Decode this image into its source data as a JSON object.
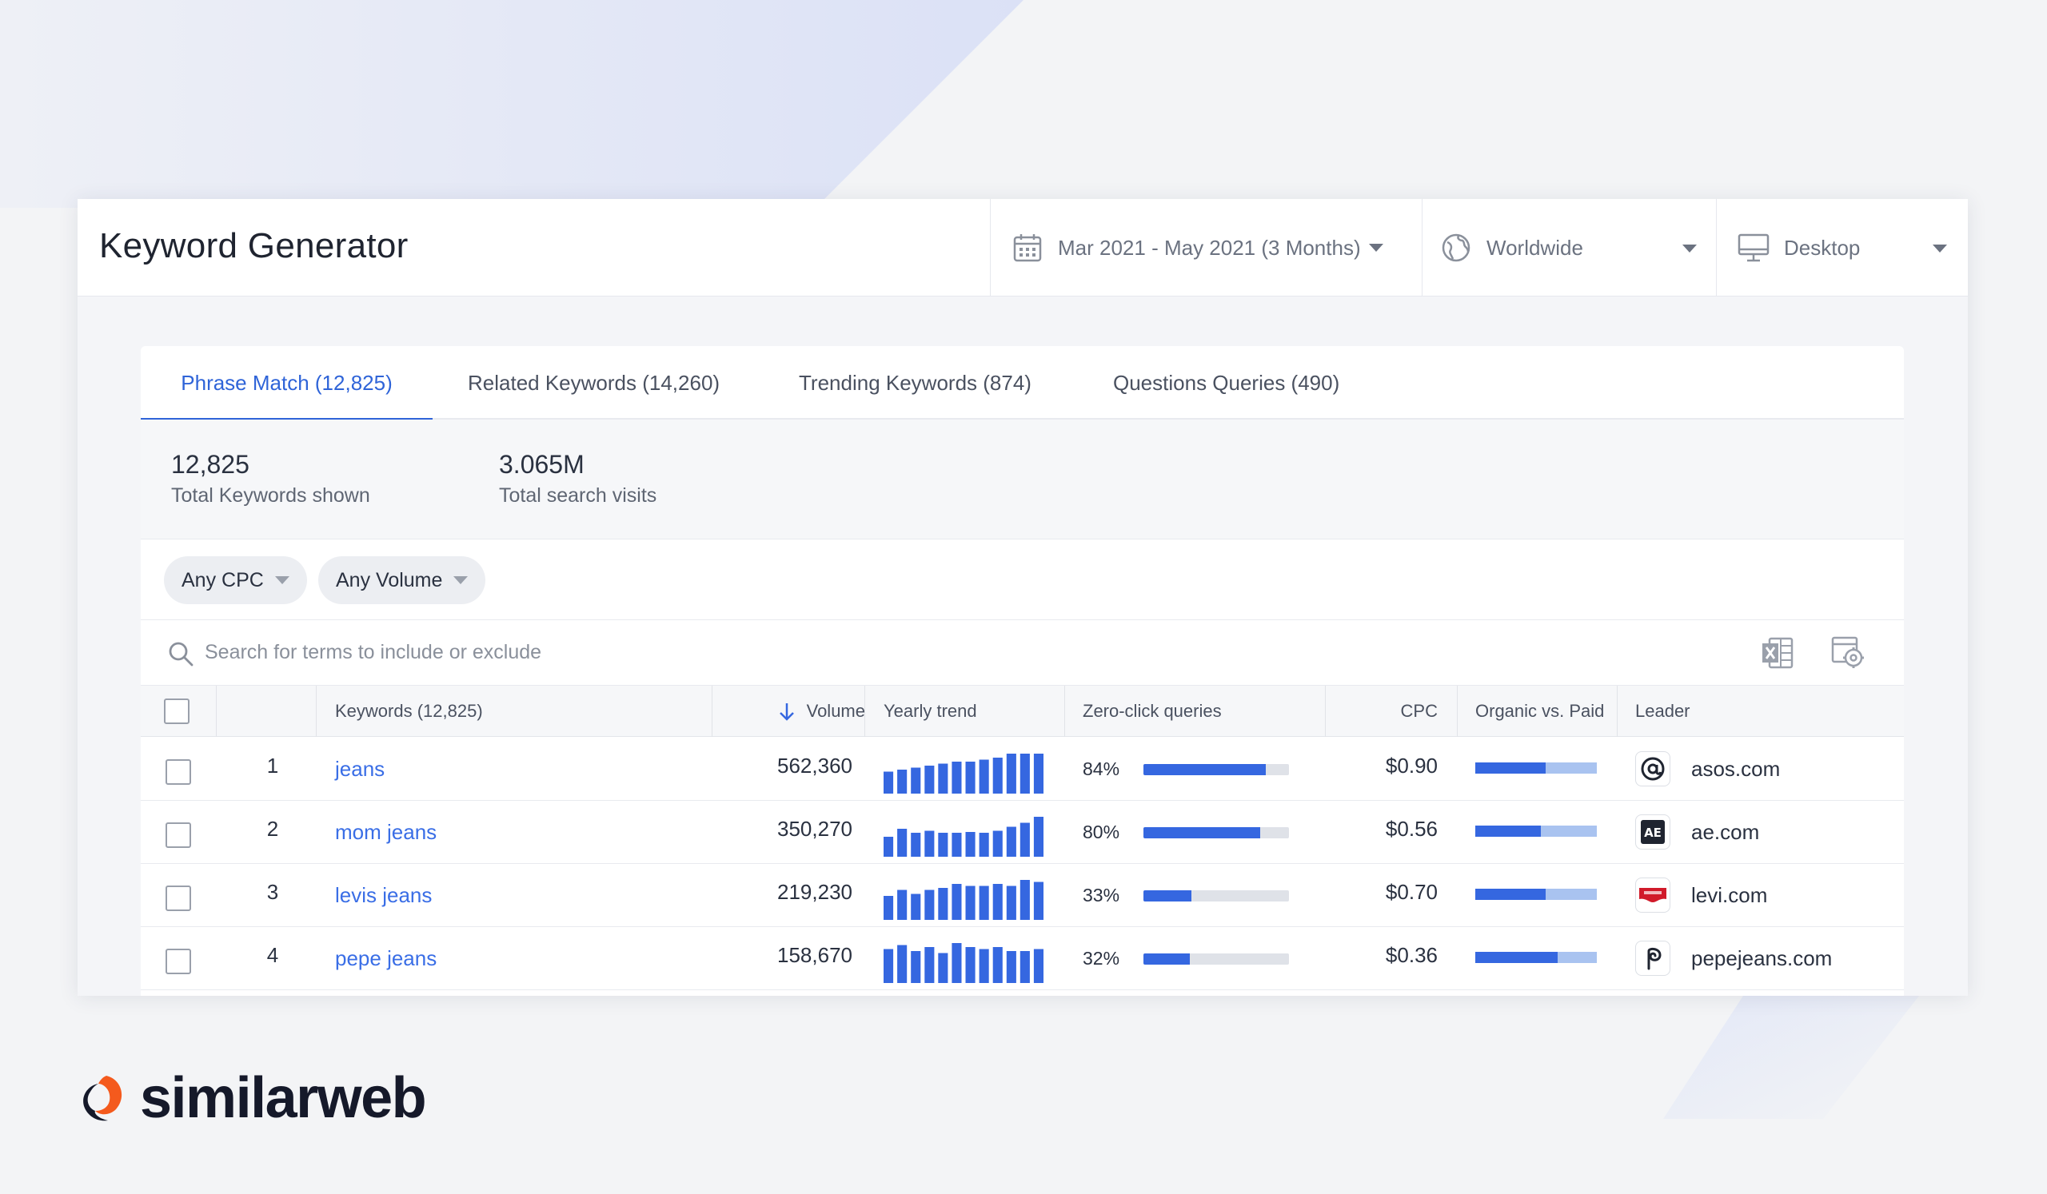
{
  "header": {
    "title": "Keyword Generator",
    "date_range": "Mar 2021 - May 2021 (3 Months)",
    "country": "Worldwide",
    "device": "Desktop"
  },
  "tabs": [
    {
      "label": "Phrase Match (12,825)",
      "active": true
    },
    {
      "label": "Related Keywords (14,260)",
      "active": false
    },
    {
      "label": "Trending Keywords (874)",
      "active": false
    },
    {
      "label": "Questions Queries (490)",
      "active": false
    }
  ],
  "stats": [
    {
      "value": "12,825",
      "label": "Total Keywords shown"
    },
    {
      "value": "3.065M",
      "label": "Total search visits"
    }
  ],
  "filters": [
    {
      "label": "Any CPC"
    },
    {
      "label": "Any Volume"
    }
  ],
  "search": {
    "placeholder": "Search for terms to include or exclude"
  },
  "table": {
    "columns": {
      "keywords": "Keywords (12,825)",
      "volume": "Volume",
      "trend": "Yearly trend",
      "zero_click": "Zero-click queries",
      "cpc": "CPC",
      "ovp": "Organic vs. Paid",
      "leader": "Leader"
    },
    "rows": [
      {
        "rank": "1",
        "keyword": "jeans",
        "volume": "562,360",
        "trend": [
          0.55,
          0.6,
          0.65,
          0.7,
          0.75,
          0.8,
          0.8,
          0.85,
          0.9,
          1.0,
          1.0,
          1.0
        ],
        "zero_click": "84%",
        "zero_click_frac": 0.84,
        "cpc": "$0.90",
        "organic_frac": 0.58,
        "leader": "asos.com",
        "leader_icon": "asos-icon"
      },
      {
        "rank": "2",
        "keyword": "mom jeans",
        "volume": "350,270",
        "trend": [
          0.5,
          0.7,
          0.6,
          0.65,
          0.6,
          0.6,
          0.62,
          0.6,
          0.65,
          0.75,
          0.85,
          1.0
        ],
        "zero_click": "80%",
        "zero_click_frac": 0.8,
        "cpc": "$0.56",
        "organic_frac": 0.54,
        "leader": "ae.com",
        "leader_icon": "american-eagle-icon"
      },
      {
        "rank": "3",
        "keyword": "levis jeans",
        "volume": "219,230",
        "trend": [
          0.6,
          0.75,
          0.65,
          0.75,
          0.8,
          0.9,
          0.85,
          0.85,
          0.9,
          0.85,
          1.0,
          0.95
        ],
        "zero_click": "33%",
        "zero_click_frac": 0.33,
        "cpc": "$0.70",
        "organic_frac": 0.58,
        "leader": "levi.com",
        "leader_icon": "levis-icon"
      },
      {
        "rank": "4",
        "keyword": "pepe jeans",
        "volume": "158,670",
        "trend": [
          0.85,
          0.95,
          0.8,
          0.9,
          0.75,
          1.0,
          0.9,
          0.85,
          0.9,
          0.8,
          0.8,
          0.85
        ],
        "zero_click": "32%",
        "zero_click_frac": 0.32,
        "cpc": "$0.36",
        "organic_frac": 0.68,
        "leader": "pepejeans.com",
        "leader_icon": "pepe-jeans-icon"
      }
    ]
  },
  "brand": {
    "name": "similarweb",
    "colors": {
      "accent": "#3567e0",
      "logo_orange": "#f45a1d",
      "logo_dark": "#15192a"
    }
  }
}
